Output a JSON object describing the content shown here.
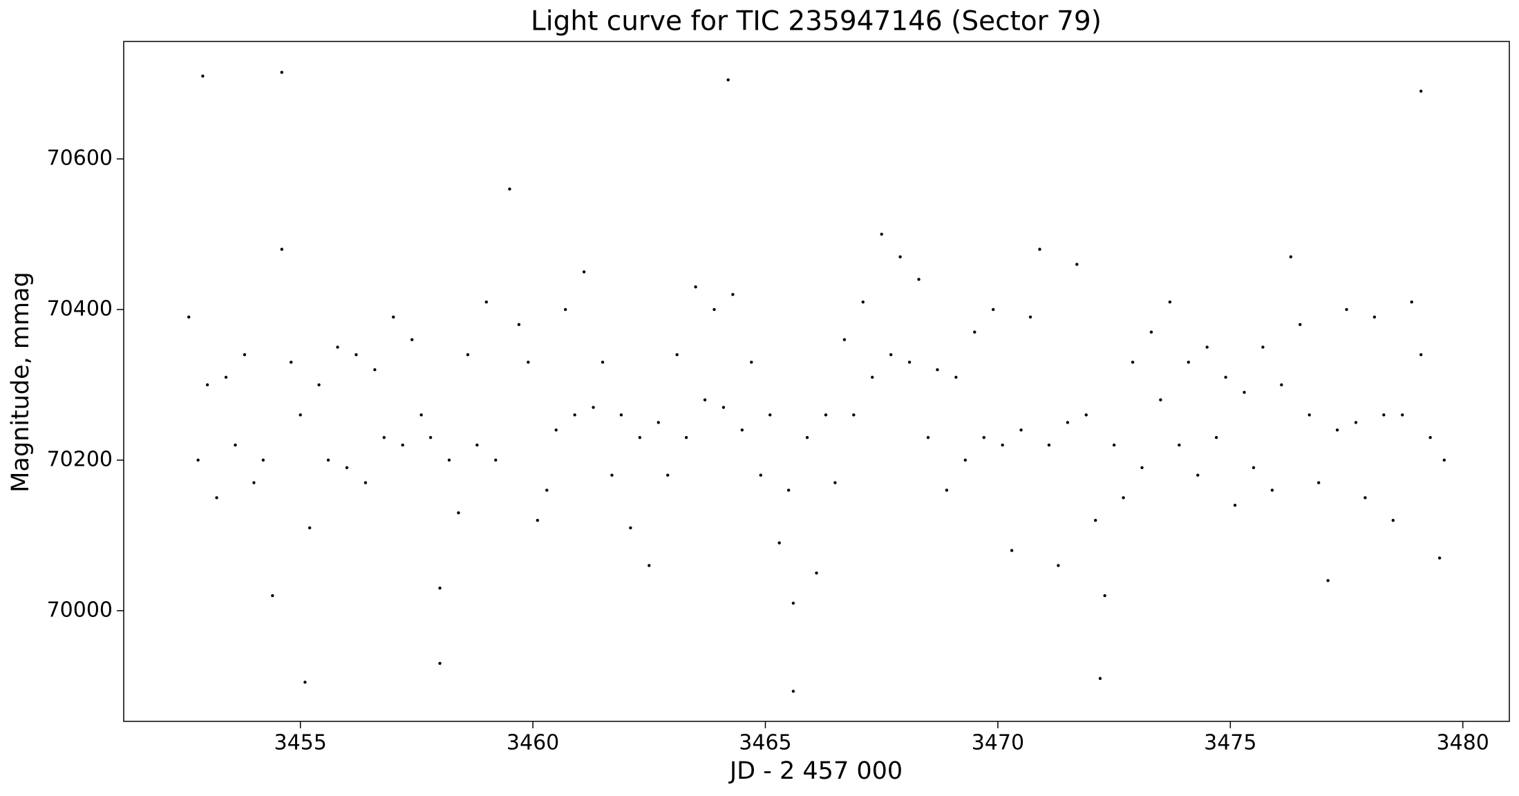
{
  "chart_data": {
    "type": "scatter",
    "title": "Light curve for TIC 235947146 (Sector 79)",
    "x_label": "JD - 2 457 000",
    "y_label": "Magnitude, mmag",
    "color": "#000000",
    "xlim": [
      3451.2,
      3481.0
    ],
    "ylim": [
      69853,
      70756
    ],
    "xticks": [
      3455,
      3460,
      3465,
      3470,
      3475,
      3480
    ],
    "yticks": [
      70000,
      70200,
      70400,
      70600
    ],
    "x": [
      3452.6,
      3452.8,
      3453.0,
      3453.2,
      3453.4,
      3453.6,
      3453.8,
      3454.0,
      3454.2,
      3454.4,
      3454.6,
      3454.8,
      3455.0,
      3455.2,
      3455.4,
      3455.6,
      3455.8,
      3456.0,
      3456.2,
      3456.4,
      3456.6,
      3456.8,
      3457.0,
      3457.2,
      3457.4,
      3457.6,
      3457.8,
      3458.0,
      3458.2,
      3458.4,
      3458.6,
      3458.8,
      3459.0,
      3459.2,
      3459.5,
      3459.7,
      3459.9,
      3460.1,
      3460.3,
      3460.5,
      3460.7,
      3460.9,
      3461.1,
      3461.3,
      3461.5,
      3461.7,
      3461.9,
      3462.1,
      3462.3,
      3462.5,
      3462.7,
      3462.9,
      3463.1,
      3463.3,
      3463.5,
      3463.7,
      3463.9,
      3464.1,
      3464.3,
      3464.5,
      3464.7,
      3464.9,
      3465.1,
      3465.3,
      3465.5,
      3465.6,
      3465.9,
      3466.1,
      3466.3,
      3466.5,
      3466.7,
      3466.9,
      3467.1,
      3467.3,
      3467.5,
      3467.7,
      3467.9,
      3468.1,
      3468.3,
      3468.5,
      3468.7,
      3468.9,
      3469.1,
      3469.3,
      3469.5,
      3469.7,
      3469.9,
      3470.1,
      3470.3,
      3470.5,
      3470.7,
      3470.9,
      3471.1,
      3471.3,
      3471.5,
      3471.7,
      3471.9,
      3472.1,
      3472.3,
      3472.5,
      3472.7,
      3472.9,
      3473.1,
      3473.3,
      3473.5,
      3473.7,
      3473.9,
      3474.1,
      3474.3,
      3474.5,
      3474.7,
      3474.9,
      3475.1,
      3475.3,
      3475.5,
      3475.7,
      3475.9,
      3476.1,
      3476.3,
      3476.5,
      3476.7,
      3476.9,
      3477.1,
      3477.3,
      3477.5,
      3477.7,
      3477.9,
      3478.1,
      3478.3,
      3478.5,
      3478.7,
      3478.9,
      3479.1,
      3479.3,
      3479.5,
      3479.6,
      3452.9,
      3454.6,
      3455.1,
      3464.2,
      3465.6,
      3472.2,
      3479.1,
      3458.0
    ],
    "values": [
      70390,
      70200,
      70300,
      70150,
      70310,
      70220,
      70340,
      70170,
      70200,
      70020,
      70480,
      70330,
      70260,
      70110,
      70300,
      70200,
      70350,
      70190,
      70340,
      70170,
      70320,
      70230,
      70390,
      70220,
      70360,
      70260,
      70230,
      70030,
      70200,
      70130,
      70340,
      70220,
      70410,
      70200,
      70560,
      70380,
      70330,
      70120,
      70160,
      70240,
      70400,
      70260,
      70450,
      70270,
      70330,
      70180,
      70260,
      70110,
      70230,
      70060,
      70250,
      70180,
      70340,
      70230,
      70430,
      70280,
      70400,
      70270,
      70420,
      70240,
      70330,
      70180,
      70260,
      70090,
      70160,
      70010,
      70230,
      70050,
      70260,
      70170,
      70360,
      70260,
      70410,
      70310,
      70500,
      70340,
      70470,
      70330,
      70440,
      70230,
      70320,
      70160,
      70310,
      70200,
      70370,
      70230,
      70400,
      70220,
      70080,
      70240,
      70390,
      70480,
      70220,
      70060,
      70250,
      70460,
      70260,
      70120,
      70020,
      70220,
      70150,
      70330,
      70190,
      70370,
      70280,
      70410,
      70220,
      70330,
      70180,
      70350,
      70230,
      70310,
      70140,
      70290,
      70190,
      70350,
      70160,
      70300,
      70470,
      70380,
      70260,
      70170,
      70040,
      70240,
      70400,
      70250,
      70150,
      70390,
      70260,
      70120,
      70260,
      70410,
      70340,
      70230,
      70070,
      70200,
      70710,
      70715,
      69905,
      70705,
      69893,
      69910,
      70690,
      69930
    ]
  }
}
